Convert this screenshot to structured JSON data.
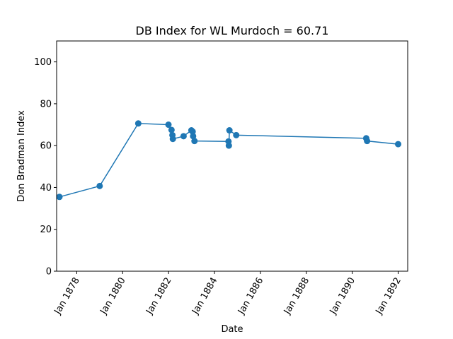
{
  "chart_data": {
    "type": "line",
    "title": "DB Index for WL Murdoch = 60.71",
    "xlabel": "Date",
    "ylabel": "Don Bradman Index",
    "x_ticks": [
      "Jan 1878",
      "Jan 1880",
      "Jan 1882",
      "Jan 1884",
      "Jan 1886",
      "Jan 1888",
      "Jan 1890",
      "Jan 1892"
    ],
    "y_ticks": [
      0,
      20,
      40,
      60,
      80,
      100
    ],
    "xlim": [
      "1877-02-15",
      "1892-06-01"
    ],
    "ylim": [
      0,
      110
    ],
    "grid": false,
    "marker": "circle",
    "line_color": "#1f77b4",
    "series": [
      {
        "x": [
          "1877-04-01",
          "1879-01-01",
          "1880-09-06",
          "1881-12-30",
          "1882-02-17",
          "1882-03-03",
          "1882-03-10",
          "1882-08-28",
          "1882-12-30",
          "1883-01-19",
          "1883-01-26",
          "1883-02-17",
          "1884-08-11",
          "1884-08-17",
          "1884-08-26",
          "1884-12-12",
          "1890-08-11",
          "1890-08-25",
          "1892-01-01"
        ],
        "y": [
          35.5,
          40.7,
          70.6,
          70.0,
          67.5,
          65.0,
          63.2,
          64.5,
          67.3,
          66.7,
          64.5,
          62.2,
          62.0,
          60.0,
          67.3,
          65.0,
          63.5,
          62.2,
          60.71
        ]
      }
    ]
  }
}
